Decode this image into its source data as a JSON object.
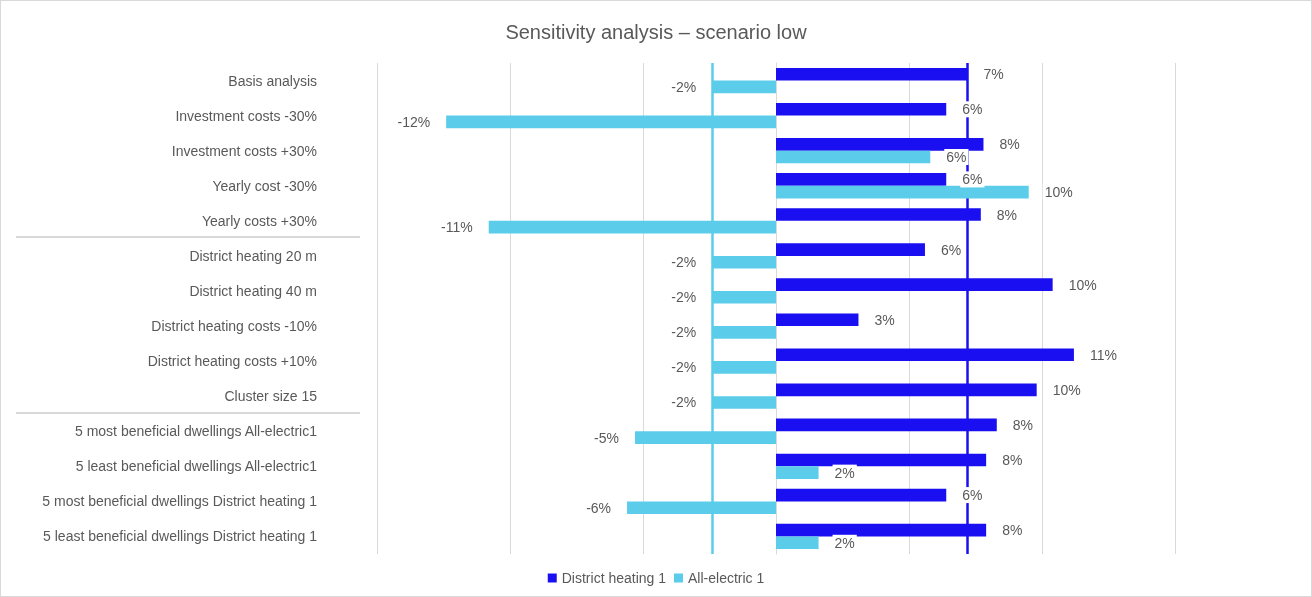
{
  "chart_data": {
    "type": "bar",
    "orientation": "horizontal",
    "title": "Sensitivity analysis – scenario low",
    "categories": [
      "Basis analysis",
      "Investment costs -30%",
      "Investment costs +30%",
      "Yearly cost -30%",
      "Yearly costs +30%",
      "District heating 20 m",
      "District heating 40 m",
      "District heating costs -10%",
      "District heating costs +10%",
      "Cluster size 15",
      "5 most beneficial dwellings All-electric1",
      "5 least beneficial dwellings All-electric1",
      "5 most beneficial dwellings District heating 1",
      "5 least beneficial dwellings District heating 1"
    ],
    "series": [
      {
        "name": "District heating 1",
        "color": "#1a0ff0",
        "values": [
          7.2,
          6.4,
          7.8,
          6.4,
          7.7,
          5.6,
          10.4,
          3.1,
          11.2,
          9.8,
          8.3,
          7.9,
          6.4,
          7.9
        ],
        "value_labels": [
          "7%",
          "6%",
          "8%",
          "6%",
          "8%",
          "6%",
          "10%",
          "3%",
          "11%",
          "10%",
          "8%",
          "8%",
          "6%",
          "8%"
        ]
      },
      {
        "name": "All-electric 1",
        "color": "#5bcdea",
        "values": [
          -2.4,
          -12.4,
          5.8,
          9.5,
          -10.8,
          -2.4,
          -2.4,
          -2.4,
          -2.4,
          -2.4,
          -5.3,
          1.6,
          -5.6,
          1.6
        ],
        "value_labels": [
          "-2%",
          "-12%",
          "6%",
          "10%",
          "-11%",
          "-2%",
          "-2%",
          "-2%",
          "-2%",
          "-2%",
          "-5%",
          "2%",
          "-6%",
          "2%"
        ]
      }
    ],
    "xlim": [
      -15,
      15
    ],
    "xticks": [
      {
        "value": -15,
        "label": null
      },
      {
        "value": -10,
        "label": null
      },
      {
        "value": -5,
        "label": null
      },
      {
        "value": 0,
        "label": null
      },
      {
        "value": 5,
        "label": null
      },
      {
        "value": 10,
        "label": null
      },
      {
        "value": 15,
        "label": null
      }
    ],
    "tick_labels": "y",
    "grid": "x",
    "legend": "bottom",
    "ref_lines": [
      {
        "axis": "x",
        "value": 7.2,
        "color": "#1a0ff0"
      },
      {
        "axis": "x",
        "value": -2.4,
        "color": "#5bcdea"
      }
    ]
  }
}
